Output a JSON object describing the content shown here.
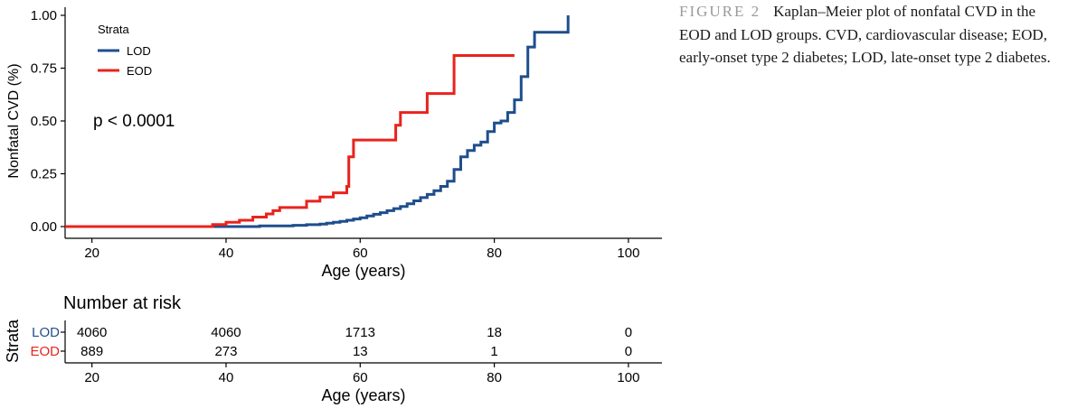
{
  "chart_data": {
    "type": "line",
    "step": true,
    "xlabel": "Age (years)",
    "ylabel": "Nonfatal CVD (%)",
    "xlim": [
      16,
      105
    ],
    "ylim": [
      0,
      1.0
    ],
    "x_ticks": [
      20,
      40,
      60,
      80,
      100
    ],
    "y_ticks": [
      "0.00",
      "0.25",
      "0.50",
      "0.75",
      "1.00"
    ],
    "legend": {
      "title": "Strata",
      "position": "top-left"
    },
    "annotation": "p < 0.0001",
    "colors": {
      "LOD": "#1f4e8c",
      "EOD": "#e8231c"
    },
    "series": [
      {
        "name": "LOD",
        "points": [
          [
            16,
            0
          ],
          [
            36,
            0
          ],
          [
            45,
            0.003
          ],
          [
            50,
            0.006
          ],
          [
            52,
            0.009
          ],
          [
            54,
            0.012
          ],
          [
            55,
            0.016
          ],
          [
            56,
            0.02
          ],
          [
            57,
            0.025
          ],
          [
            58,
            0.03
          ],
          [
            59,
            0.036
          ],
          [
            60,
            0.042
          ],
          [
            61,
            0.05
          ],
          [
            62,
            0.058
          ],
          [
            63,
            0.066
          ],
          [
            64,
            0.075
          ],
          [
            65,
            0.085
          ],
          [
            66,
            0.095
          ],
          [
            67,
            0.108
          ],
          [
            68,
            0.122
          ],
          [
            69,
            0.137
          ],
          [
            70,
            0.152
          ],
          [
            71,
            0.17
          ],
          [
            72,
            0.19
          ],
          [
            73,
            0.215
          ],
          [
            74,
            0.27
          ],
          [
            75,
            0.33
          ],
          [
            76,
            0.36
          ],
          [
            77,
            0.385
          ],
          [
            78,
            0.4
          ],
          [
            79,
            0.45
          ],
          [
            80,
            0.49
          ],
          [
            81,
            0.5
          ],
          [
            82,
            0.54
          ],
          [
            83,
            0.6
          ],
          [
            84,
            0.71
          ],
          [
            85,
            0.85
          ],
          [
            86,
            0.92
          ],
          [
            91,
            0.92
          ],
          [
            91,
            1.0
          ]
        ]
      },
      {
        "name": "EOD",
        "points": [
          [
            16,
            0
          ],
          [
            34,
            0
          ],
          [
            38,
            0.01
          ],
          [
            40,
            0.02
          ],
          [
            42,
            0.03
          ],
          [
            44,
            0.045
          ],
          [
            46,
            0.06
          ],
          [
            47,
            0.075
          ],
          [
            48,
            0.09
          ],
          [
            52,
            0.12
          ],
          [
            54,
            0.14
          ],
          [
            56,
            0.16
          ],
          [
            58,
            0.19
          ],
          [
            58.3,
            0.33
          ],
          [
            59,
            0.41
          ],
          [
            65,
            0.41
          ],
          [
            65.3,
            0.48
          ],
          [
            66,
            0.54
          ],
          [
            70,
            0.54
          ],
          [
            70,
            0.63
          ],
          [
            74,
            0.63
          ],
          [
            74,
            0.81
          ],
          [
            83,
            0.81
          ]
        ]
      }
    ],
    "risk_table": {
      "title": "Number at risk",
      "ylabel": "Strata",
      "xlabel": "Age (years)",
      "x_ticks": [
        20,
        40,
        60,
        80,
        100
      ],
      "rows": [
        {
          "name": "LOD",
          "values": [
            "4060",
            "4060",
            "1713",
            "18",
            "0"
          ]
        },
        {
          "name": "EOD",
          "values": [
            "889",
            "273",
            "13",
            "1",
            "0"
          ]
        }
      ]
    }
  },
  "caption": {
    "label": "FIGURE 2",
    "text": "Kaplan–Meier plot of nonfatal CVD in the EOD and LOD groups. CVD, cardiovascular disease; EOD, early-onset type 2 diabetes; LOD, late-onset type 2 diabetes."
  }
}
